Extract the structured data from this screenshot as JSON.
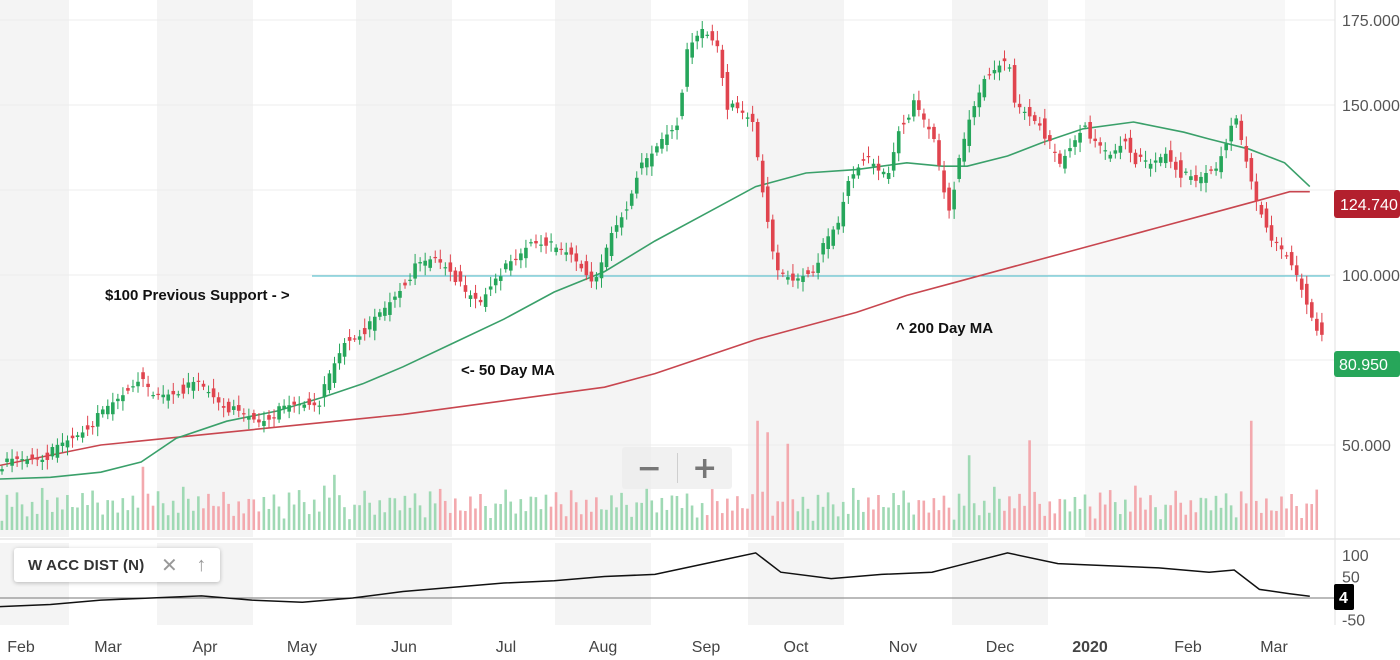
{
  "chart_data": [
    {
      "type": "candlestick",
      "x_labels": [
        "Feb",
        "Mar",
        "Apr",
        "May",
        "Jun",
        "Jul",
        "Aug",
        "Sep",
        "Oct",
        "Nov",
        "Dec",
        "2020",
        "Feb",
        "Mar"
      ],
      "y_ticks": [
        "175.000",
        "150.000",
        "100.000",
        "75.000",
        "50.000"
      ],
      "y_range": [
        37,
        178
      ],
      "price_path": [
        [
          0,
          44
        ],
        [
          10,
          47
        ],
        [
          15,
          52
        ],
        [
          20,
          58
        ],
        [
          25,
          65
        ],
        [
          28,
          70
        ],
        [
          31,
          64
        ],
        [
          36,
          66
        ],
        [
          40,
          68
        ],
        [
          45,
          62
        ],
        [
          48,
          59
        ],
        [
          52,
          57
        ],
        [
          56,
          60
        ],
        [
          60,
          62
        ],
        [
          64,
          63
        ],
        [
          66,
          70
        ],
        [
          69,
          80
        ],
        [
          74,
          85
        ],
        [
          77,
          90
        ],
        [
          80,
          96
        ],
        [
          83,
          102
        ],
        [
          87,
          105
        ],
        [
          90,
          102
        ],
        [
          93,
          94
        ],
        [
          96,
          92
        ],
        [
          99,
          100
        ],
        [
          103,
          104
        ],
        [
          106,
          110
        ],
        [
          109,
          110
        ],
        [
          111,
          107
        ],
        [
          114,
          106
        ],
        [
          117,
          101
        ],
        [
          119,
          98
        ],
        [
          122,
          112
        ],
        [
          125,
          120
        ],
        [
          127,
          130
        ],
        [
          130,
          135
        ],
        [
          132,
          140
        ],
        [
          135,
          145
        ],
        [
          137,
          165
        ],
        [
          140,
          172
        ],
        [
          143,
          168
        ],
        [
          145,
          150
        ],
        [
          147,
          148
        ],
        [
          150,
          145
        ],
        [
          151,
          135
        ],
        [
          152,
          125
        ],
        [
          155,
          100
        ],
        [
          158,
          98
        ],
        [
          160,
          100
        ],
        [
          162,
          102
        ],
        [
          164,
          108
        ],
        [
          167,
          115
        ],
        [
          169,
          128
        ],
        [
          172,
          135
        ],
        [
          175,
          130
        ],
        [
          177,
          130
        ],
        [
          179,
          143
        ],
        [
          182,
          150
        ],
        [
          184,
          145
        ],
        [
          186,
          140
        ],
        [
          188,
          125
        ],
        [
          189,
          120
        ],
        [
          191,
          133
        ],
        [
          193,
          145
        ],
        [
          196,
          158
        ],
        [
          199,
          163
        ],
        [
          201,
          160
        ],
        [
          202,
          150
        ],
        [
          204,
          148
        ],
        [
          207,
          145
        ],
        [
          209,
          138
        ],
        [
          211,
          132
        ],
        [
          214,
          140
        ],
        [
          216,
          145
        ],
        [
          218,
          138
        ],
        [
          221,
          135
        ],
        [
          224,
          140
        ],
        [
          226,
          134
        ],
        [
          229,
          132
        ],
        [
          232,
          136
        ],
        [
          235,
          130
        ],
        [
          238,
          127
        ],
        [
          240,
          130
        ],
        [
          242,
          132
        ],
        [
          244,
          140
        ],
        [
          246,
          145
        ],
        [
          248,
          133
        ],
        [
          250,
          122
        ],
        [
          252,
          115
        ],
        [
          254,
          108
        ],
        [
          256,
          105
        ],
        [
          258,
          100
        ],
        [
          260,
          92
        ],
        [
          262,
          85
        ],
        [
          263,
          81
        ]
      ],
      "ma50": [
        [
          0,
          40
        ],
        [
          10,
          40.5
        ],
        [
          20,
          42
        ],
        [
          28,
          45
        ],
        [
          35,
          52
        ],
        [
          45,
          57
        ],
        [
          55,
          60
        ],
        [
          64,
          64
        ],
        [
          72,
          68
        ],
        [
          80,
          73
        ],
        [
          90,
          80
        ],
        [
          100,
          87
        ],
        [
          110,
          95
        ],
        [
          120,
          101
        ],
        [
          130,
          110
        ],
        [
          140,
          118
        ],
        [
          150,
          126
        ],
        [
          160,
          130
        ],
        [
          170,
          131
        ],
        [
          180,
          133
        ],
        [
          187,
          132
        ],
        [
          192,
          132
        ],
        [
          200,
          135
        ],
        [
          207,
          139
        ],
        [
          215,
          143
        ],
        [
          225,
          145
        ],
        [
          235,
          142
        ],
        [
          240,
          140
        ],
        [
          248,
          137
        ],
        [
          255,
          133
        ],
        [
          260,
          126
        ]
      ],
      "ma200": [
        [
          0,
          44
        ],
        [
          20,
          50
        ],
        [
          40,
          53
        ],
        [
          60,
          56
        ],
        [
          80,
          59
        ],
        [
          100,
          63
        ],
        [
          120,
          67
        ],
        [
          130,
          71
        ],
        [
          140,
          76
        ],
        [
          150,
          81
        ],
        [
          160,
          85
        ],
        [
          170,
          89
        ],
        [
          180,
          94
        ],
        [
          190,
          98
        ],
        [
          200,
          102
        ],
        [
          210,
          106
        ],
        [
          220,
          110
        ],
        [
          230,
          114
        ],
        [
          240,
          118
        ],
        [
          250,
          122
        ],
        [
          256,
          124.5
        ],
        [
          260,
          124.5
        ]
      ],
      "volume_spikes": [
        [
          28,
          0.55
        ],
        [
          66,
          0.48
        ],
        [
          150,
          0.95
        ],
        [
          152,
          0.85
        ],
        [
          156,
          0.75
        ],
        [
          192,
          0.65
        ],
        [
          204,
          0.78
        ],
        [
          248,
          0.95
        ]
      ],
      "support_level": 100,
      "labels": {
        "last_price": "80.950",
        "ma200_value": "124.740",
        "support": "$100 Previous Support - >",
        "ma50": "<- 50 Day MA",
        "ma200": "^ 200 Day MA"
      },
      "colors": {
        "up": "#26a65b",
        "down": "#e0444e",
        "ma50": "#3aa06a",
        "ma200": "#c8464f",
        "support_line": "#3fb8c8",
        "volume_up": "#9fd9b4",
        "volume_down": "#f3a9ae",
        "last_price_badge": "#27a65a",
        "ma_badge": "#b3202e",
        "shade": "#f4f4f4"
      }
    },
    {
      "type": "line",
      "series": [
        {
          "name": "W ACC DIST (N)",
          "values": [
            [
              0,
              -20
            ],
            [
              10,
              -15
            ],
            [
              20,
              -5
            ],
            [
              30,
              0
            ],
            [
              40,
              5
            ],
            [
              50,
              -5
            ],
            [
              60,
              -10
            ],
            [
              70,
              0
            ],
            [
              80,
              15
            ],
            [
              90,
              25
            ],
            [
              100,
              35
            ],
            [
              110,
              40
            ],
            [
              120,
              50
            ],
            [
              130,
              55
            ],
            [
              140,
              80
            ],
            [
              150,
              105
            ],
            [
              155,
              60
            ],
            [
              165,
              45
            ],
            [
              175,
              55
            ],
            [
              185,
              60
            ],
            [
              190,
              75
            ],
            [
              200,
              105
            ],
            [
              210,
              80
            ],
            [
              220,
              75
            ],
            [
              230,
              70
            ],
            [
              240,
              60
            ],
            [
              245,
              65
            ],
            [
              250,
              20
            ],
            [
              256,
              10
            ],
            [
              260,
              4
            ]
          ]
        }
      ],
      "y_ticks": [
        "100",
        "50",
        "-50"
      ],
      "y_range": [
        -70,
        120
      ],
      "last_value": "4",
      "color": "#111111"
    }
  ],
  "indicator_legend": {
    "label": "W ACC DIST (N)",
    "close_icon": "close-icon",
    "up_icon": "arrow-up-icon"
  },
  "zoom": {
    "minus": "−",
    "plus": "+"
  }
}
